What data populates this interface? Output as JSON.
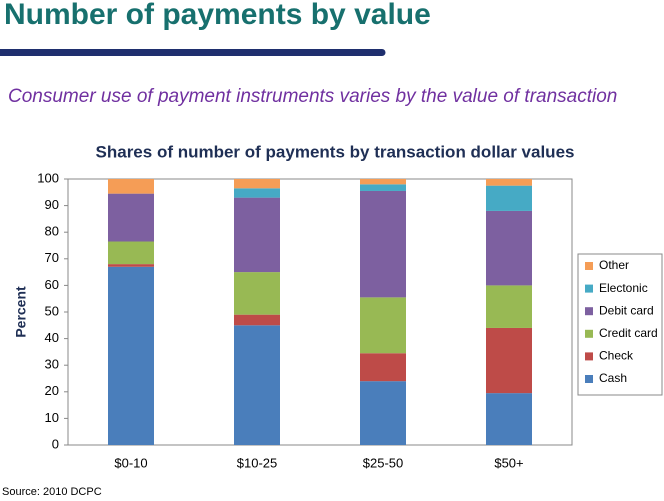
{
  "slide_title": "Number of payments by value",
  "subtitle": "Consumer use of payment instruments varies by the value of transaction",
  "source": "Source: 2010 DCPC",
  "chart_data": {
    "type": "stacked_bar",
    "title": "Shares of number of payments by transaction dollar values",
    "y_label": "Percent",
    "categories": [
      "$0-10",
      "$10-25",
      "$25-50",
      "$50+"
    ],
    "series": [
      {
        "name": "Cash",
        "color": "#4a7ebb",
        "values": [
          67,
          45,
          24,
          19.5
        ]
      },
      {
        "name": "Check",
        "color": "#be4b48",
        "values": [
          1,
          4,
          10.5,
          24.5
        ]
      },
      {
        "name": "Credit card",
        "color": "#98b954",
        "values": [
          8.5,
          16,
          21,
          16
        ]
      },
      {
        "name": "Debit card",
        "color": "#7d60a0",
        "values": [
          18,
          28,
          40,
          28
        ]
      },
      {
        "name": "Electonic",
        "color": "#46aac5",
        "values": [
          0,
          3.5,
          2.5,
          9.5
        ]
      },
      {
        "name": "Other",
        "color": "#f59d56",
        "values": [
          5.5,
          3.5,
          2,
          2.5
        ]
      }
    ],
    "ylim": [
      0,
      100
    ],
    "yticks": [
      0,
      10,
      20,
      30,
      40,
      50,
      60,
      70,
      80,
      90,
      100
    ],
    "grid": false,
    "legend": "right"
  }
}
